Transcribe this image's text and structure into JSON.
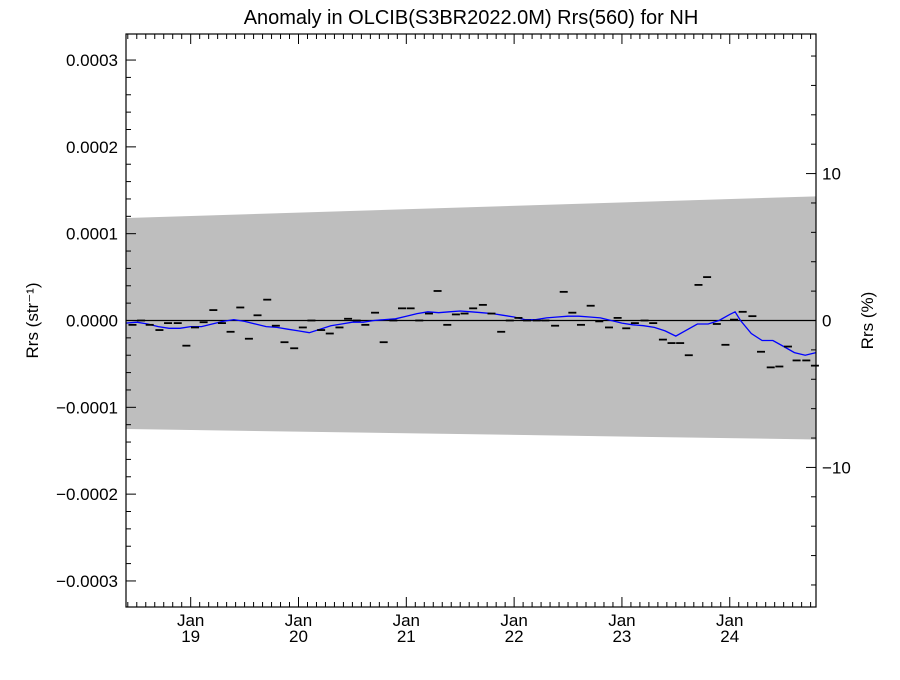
{
  "chart_data": {
    "type": "line",
    "title": "Anomaly in OLCIB(S3BR2022.0M) Rrs(560) for NH",
    "ylabel_left": "Rrs (str⁻¹)",
    "ylabel_right": "Rrs (%)",
    "xlim": [
      2018.4,
      2024.8
    ],
    "ylim": [
      -0.00033,
      0.00033
    ],
    "ylim_right": [
      -19.5,
      19.5
    ],
    "y_ticks": [
      {
        "value": 0.0003,
        "label": "0.0003"
      },
      {
        "value": 0.0002,
        "label": "0.0002"
      },
      {
        "value": 0.0001,
        "label": "0.0001"
      },
      {
        "value": 0.0,
        "label": "0.0000"
      },
      {
        "value": -0.0001,
        "label": "−0.0001"
      },
      {
        "value": -0.0002,
        "label": "−0.0002"
      },
      {
        "value": -0.0003,
        "label": "−0.0003"
      }
    ],
    "y_right_ticks": [
      {
        "value": 10,
        "label": "10"
      },
      {
        "value": 0,
        "label": "0"
      },
      {
        "value": -10,
        "label": "−10"
      }
    ],
    "x_ticks": [
      {
        "value": 2019.0,
        "month": "Jan",
        "year": "19"
      },
      {
        "value": 2020.0,
        "month": "Jan",
        "year": "20"
      },
      {
        "value": 2021.0,
        "month": "Jan",
        "year": "21"
      },
      {
        "value": 2022.0,
        "month": "Jan",
        "year": "22"
      },
      {
        "value": 2023.0,
        "month": "Jan",
        "year": "23"
      },
      {
        "value": 2024.0,
        "month": "Jan",
        "year": "24"
      }
    ],
    "band": {
      "x": [
        2018.4,
        2024.8
      ],
      "upper": [
        0.000118,
        0.000143
      ],
      "lower": [
        -0.000125,
        -0.000137
      ],
      "color": "#bebebe"
    },
    "zero_line": 0.0,
    "monthly_anomaly": {
      "x": [
        2018.46,
        2018.54,
        2018.62,
        2018.71,
        2018.79,
        2018.88,
        2018.96,
        2019.04,
        2019.12,
        2019.21,
        2019.29,
        2019.37,
        2019.46,
        2019.54,
        2019.62,
        2019.71,
        2019.79,
        2019.87,
        2019.96,
        2020.04,
        2020.12,
        2020.21,
        2020.29,
        2020.38,
        2020.46,
        2020.54,
        2020.62,
        2020.71,
        2020.79,
        2020.88,
        2020.96,
        2021.04,
        2021.12,
        2021.21,
        2021.29,
        2021.38,
        2021.46,
        2021.54,
        2021.62,
        2021.71,
        2021.79,
        2021.88,
        2021.96,
        2022.04,
        2022.12,
        2022.21,
        2022.29,
        2022.38,
        2022.46,
        2022.54,
        2022.62,
        2022.71,
        2022.79,
        2022.88,
        2022.96,
        2023.04,
        2023.12,
        2023.21,
        2023.29,
        2023.38,
        2023.46,
        2023.54,
        2023.62,
        2023.71,
        2023.79,
        2023.88,
        2023.96,
        2024.04,
        2024.12,
        2024.21,
        2024.29,
        2024.38,
        2024.46,
        2024.54,
        2024.62,
        2024.71,
        2024.79
      ],
      "y": [
        -5e-06,
        0.0,
        -5e-06,
        -1.1e-05,
        -3e-06,
        -3e-06,
        -2.9e-05,
        -8e-06,
        -2e-06,
        1.2e-05,
        -3e-06,
        -1.3e-05,
        1.5e-05,
        -2.1e-05,
        6e-06,
        2.4e-05,
        -6e-06,
        -2.5e-05,
        -3.2e-05,
        -8e-06,
        0.0,
        -1.1e-05,
        -1.5e-05,
        -8e-06,
        2e-06,
        0.0,
        -5e-06,
        9e-06,
        -2.5e-05,
        0.0,
        1.4e-05,
        1.4e-05,
        0.0,
        8e-06,
        3.4e-05,
        -5e-06,
        7e-06,
        8e-06,
        1.4e-05,
        1.8e-05,
        8e-06,
        -1.3e-05,
        0.0,
        3e-06,
        0.0,
        0.0,
        0.0,
        -6e-06,
        3.3e-05,
        9e-06,
        -5e-06,
        1.7e-05,
        -1e-06,
        -8e-06,
        3e-06,
        -9e-06,
        -3e-06,
        0.0,
        -3e-06,
        -2.2e-05,
        -2.6e-05,
        -2.6e-05,
        -4e-05,
        4.1e-05,
        5e-05,
        -4e-06,
        -2.8e-05,
        1e-06,
        1e-05,
        5e-06,
        -3.6e-05,
        -5.4e-05,
        -5.3e-05,
        -3e-05,
        -4.6e-05,
        -4.6e-05,
        -5.2e-05
      ],
      "color": "#000000"
    },
    "series": [
      {
        "color": "#0000ff",
        "x": [
          2018.4,
          2018.5,
          2018.6,
          2018.7,
          2018.8,
          2018.9,
          2019.0,
          2019.1,
          2019.2,
          2019.3,
          2019.4,
          2019.5,
          2019.6,
          2019.7,
          2019.8,
          2019.9,
          2020.0,
          2020.1,
          2020.2,
          2020.3,
          2020.4,
          2020.5,
          2020.6,
          2020.7,
          2020.8,
          2020.9,
          2021.0,
          2021.1,
          2021.2,
          2021.3,
          2021.4,
          2021.5,
          2021.6,
          2021.7,
          2021.8,
          2021.9,
          2022.0,
          2022.1,
          2022.2,
          2022.3,
          2022.4,
          2022.5,
          2022.6,
          2022.7,
          2022.8,
          2022.9,
          2023.0,
          2023.1,
          2023.2,
          2023.3,
          2023.4,
          2023.5,
          2023.6,
          2023.7,
          2023.8,
          2023.9,
          2024.0,
          2024.05,
          2024.1,
          2024.2,
          2024.3,
          2024.4,
          2024.5,
          2024.6,
          2024.7,
          2024.8
        ],
        "y": [
          -3e-06,
          -2e-06,
          -4e-06,
          -7e-06,
          -9e-06,
          -9e-06,
          -7e-06,
          -7e-06,
          -4e-06,
          -1e-06,
          1e-06,
          -1e-06,
          -4e-06,
          -7e-06,
          -8e-06,
          -1e-05,
          -1.2e-05,
          -1.4e-05,
          -1e-05,
          -6e-06,
          -4e-06,
          -2e-06,
          -2e-06,
          0.0,
          1e-06,
          2e-06,
          5e-06,
          8e-06,
          1e-05,
          9e-06,
          1e-05,
          1.1e-05,
          1e-05,
          9e-06,
          8e-06,
          6e-06,
          4e-06,
          1e-06,
          1e-06,
          3e-06,
          4e-06,
          5e-06,
          5e-06,
          4e-06,
          3e-06,
          0.0,
          -3e-06,
          -5e-06,
          -6e-06,
          -8e-06,
          -1.2e-05,
          -1.8e-05,
          -1.1e-05,
          -4e-06,
          -4e-06,
          0.0,
          7e-06,
          1e-05,
          0.0,
          -1.5e-05,
          -2.3e-05,
          -2.3e-05,
          -3e-05,
          -3.7e-05,
          -4e-05,
          -3.7e-05
        ]
      }
    ],
    "grid": false,
    "legend": "none"
  }
}
